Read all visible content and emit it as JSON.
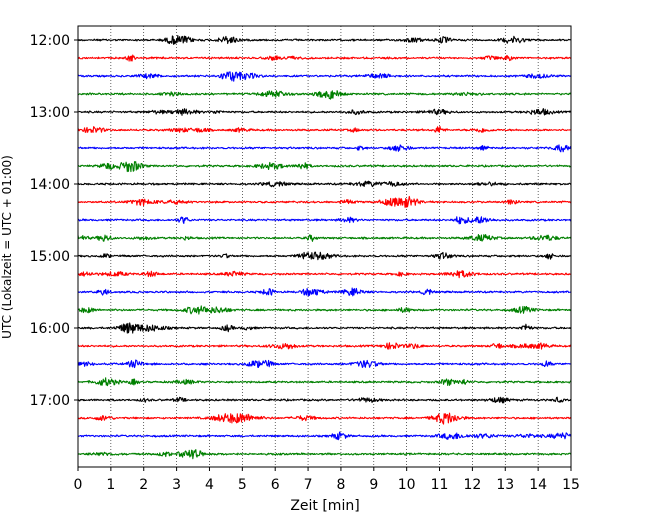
{
  "chart_data": {
    "type": "line",
    "title": "",
    "xlabel": "Zeit  [min]",
    "ylabel": "UTC (Lokalzeit = UTC + 01:00)",
    "xlim": [
      0,
      15
    ],
    "x_ticks": [
      "0",
      "1",
      "2",
      "3",
      "4",
      "5",
      "6",
      "7",
      "8",
      "9",
      "10",
      "11",
      "12",
      "13",
      "14",
      "15"
    ],
    "y_tick_labels": [
      "12:00",
      "13:00",
      "14:00",
      "15:00",
      "16:00",
      "17:00"
    ],
    "minutes_per_line": 15,
    "grid": "vertical dotted lines at each minute",
    "legend": "none",
    "color_cycle": [
      "#000000",
      "#ff0000",
      "#0000ff",
      "#008000"
    ],
    "series": [
      {
        "start": "12:00",
        "color": "#000000"
      },
      {
        "start": "12:15",
        "color": "#ff0000"
      },
      {
        "start": "12:30",
        "color": "#0000ff"
      },
      {
        "start": "12:45",
        "color": "#008000"
      },
      {
        "start": "13:00",
        "color": "#000000"
      },
      {
        "start": "13:15",
        "color": "#ff0000"
      },
      {
        "start": "13:30",
        "color": "#0000ff"
      },
      {
        "start": "13:45",
        "color": "#008000"
      },
      {
        "start": "14:00",
        "color": "#000000"
      },
      {
        "start": "14:15",
        "color": "#ff0000"
      },
      {
        "start": "14:30",
        "color": "#0000ff"
      },
      {
        "start": "14:45",
        "color": "#008000"
      },
      {
        "start": "15:00",
        "color": "#000000"
      },
      {
        "start": "15:15",
        "color": "#ff0000"
      },
      {
        "start": "15:30",
        "color": "#0000ff"
      },
      {
        "start": "15:45",
        "color": "#008000"
      },
      {
        "start": "16:00",
        "color": "#000000"
      },
      {
        "start": "16:15",
        "color": "#ff0000"
      },
      {
        "start": "16:30",
        "color": "#0000ff"
      },
      {
        "start": "16:45",
        "color": "#008000"
      },
      {
        "start": "17:00",
        "color": "#000000"
      },
      {
        "start": "17:15",
        "color": "#ff0000"
      },
      {
        "start": "17:30",
        "color": "#0000ff"
      },
      {
        "start": "17:45",
        "color": "#008000"
      }
    ]
  }
}
